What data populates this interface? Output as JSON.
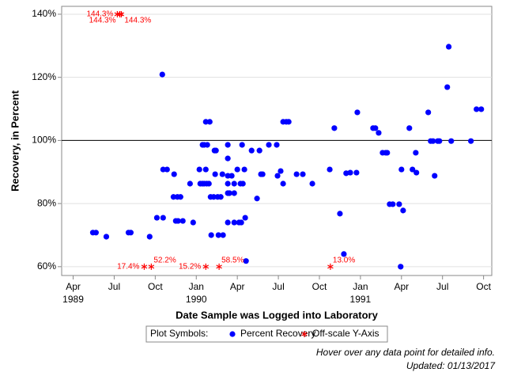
{
  "chart_data": {
    "type": "scatter",
    "y_label": "Recovery, in Percent",
    "x_label": "Date Sample was Logged into Laboratory",
    "xlim": [
      1989.18,
      1991.8
    ],
    "ylim": [
      57.2,
      142.5
    ],
    "xticks": [
      {
        "value": 1989.25,
        "label": "Apr"
      },
      {
        "value": 1989.5,
        "label": "Jul"
      },
      {
        "value": 1989.75,
        "label": "Oct"
      },
      {
        "value": 1990,
        "label": "Jan"
      },
      {
        "value": 1990.25,
        "label": "Apr"
      },
      {
        "value": 1990.5,
        "label": "Jul"
      },
      {
        "value": 1990.75,
        "label": "Oct"
      },
      {
        "value": 1991,
        "label": "Jan"
      },
      {
        "value": 1991.25,
        "label": "Apr"
      },
      {
        "value": 1991.5,
        "label": "Jul"
      },
      {
        "value": 1991.75,
        "label": "Oct"
      }
    ],
    "xtick_years": [
      {
        "value": 1989.25,
        "label": "1989"
      },
      {
        "value": 1990,
        "label": "1990"
      },
      {
        "value": 1991,
        "label": "1991"
      }
    ],
    "yticks": [
      {
        "value": 60,
        "label": "60%"
      },
      {
        "value": 80,
        "label": "80%"
      },
      {
        "value": 100,
        "label": "100%"
      },
      {
        "value": 120,
        "label": "120%"
      },
      {
        "value": 140,
        "label": "140%"
      }
    ],
    "grid": true,
    "reference_line": 100,
    "legend": {
      "title": "Plot Symbols:"
    },
    "series": [
      {
        "name": "Percent Recovery",
        "color": "#0000ff",
        "marker": "circle",
        "x": [
          1989.37,
          1989.389,
          1989.452,
          1989.587,
          1989.601,
          1989.716,
          1989.76,
          1989.793,
          1989.798,
          1989.798,
          1989.822,
          1989.861,
          1989.865,
          1989.875,
          1989.889,
          1989.885,
          1989.904,
          1989.918,
          1989.962,
          1989.981,
          1990.019,
          1990.024,
          1990.038,
          1990.048,
          1990.058,
          1990.038,
          1990.048,
          1990.063,
          1990.077,
          1990.067,
          1990.082,
          1990.058,
          1990.087,
          1990.091,
          1990.106,
          1990.111,
          1990.12,
          1990.115,
          1990.13,
          1990.135,
          1990.149,
          1990.159,
          1990.163,
          1990.192,
          1990.192,
          1990.192,
          1990.192,
          1990.192,
          1990.192,
          1990.202,
          1990.216,
          1990.231,
          1990.231,
          1990.231,
          1990.25,
          1990.26,
          1990.269,
          1990.274,
          1990.279,
          1990.284,
          1990.293,
          1990.298,
          1990.303,
          1990.337,
          1990.37,
          1990.385,
          1990.394,
          1990.404,
          1990.442,
          1990.49,
          1990.495,
          1990.514,
          1990.529,
          1990.548,
          1990.563,
          1990.529,
          1990.611,
          1990.649,
          1990.707,
          1990.813,
          1990.841,
          1990.875,
          1990.899,
          1990.913,
          1990.938,
          1990.976,
          1990.981,
          1991.077,
          1991.091,
          1991.111,
          1991.135,
          1991.154,
          1991.163,
          1991.178,
          1991.197,
          1991.236,
          1991.245,
          1991.25,
          1991.26,
          1991.298,
          1991.317,
          1991.337,
          1991.341,
          1991.413,
          1991.428,
          1991.442,
          1991.452,
          1991.471,
          1991.481,
          1991.529,
          1991.538,
          1991.553,
          1991.673,
          1991.707,
          1991.736
        ],
        "values": [
          70.8,
          70.8,
          69.5,
          70.8,
          70.8,
          69.5,
          75.5,
          120.9,
          75.5,
          90.8,
          90.8,
          82.1,
          89.3,
          74.5,
          74.5,
          82.1,
          82.1,
          74.5,
          86.3,
          74.0,
          90.8,
          86.3,
          98.6,
          98.6,
          90.8,
          86.3,
          86.3,
          86.3,
          86.3,
          98.6,
          105.9,
          105.9,
          82.1,
          70.0,
          82.1,
          96.8,
          96.8,
          89.3,
          82.1,
          70.0,
          82.1,
          89.3,
          70.0,
          98.6,
          94.3,
          83.3,
          86.3,
          88.8,
          74.0,
          83.3,
          88.8,
          86.3,
          83.3,
          74.0,
          90.8,
          74.0,
          86.3,
          74.0,
          98.6,
          86.3,
          90.8,
          75.5,
          61.8,
          96.8,
          81.6,
          96.8,
          89.3,
          89.3,
          98.6,
          98.6,
          88.8,
          90.3,
          105.9,
          105.9,
          105.9,
          86.3,
          89.3,
          89.3,
          86.3,
          90.8,
          103.9,
          76.8,
          64.0,
          89.6,
          89.8,
          89.8,
          108.9,
          103.9,
          103.9,
          102.4,
          96.1,
          96.1,
          96.1,
          79.8,
          79.8,
          79.8,
          60.0,
          90.8,
          77.8,
          103.9,
          90.8,
          96.1,
          89.8,
          108.9,
          99.8,
          99.8,
          88.8,
          99.8,
          99.8,
          116.9,
          129.7,
          99.8,
          99.8,
          109.9,
          109.9
        ]
      },
      {
        "name": "Off-scale Y-Axis",
        "color": "#ff0000",
        "marker": "star",
        "x": [
          1989.519,
          1989.534,
          1989.543,
          1989.683,
          1989.726,
          1990.058,
          1990.139,
          1990.817
        ],
        "values": [
          144.3,
          144.3,
          144.3,
          17.4,
          52.2,
          15.2,
          58.5,
          13.0
        ],
        "value_labels": [
          "144.3%",
          "144.3%",
          "144.3%",
          "17.4%",
          "52.2%",
          "15.2%",
          "58.5%",
          "13.0%"
        ]
      }
    ],
    "notes": [
      "Hover over any data point for detailed info.",
      "Updated: 01/13/2017"
    ]
  }
}
